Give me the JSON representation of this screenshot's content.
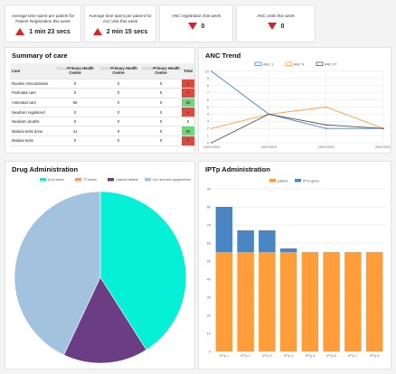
{
  "kpis": [
    {
      "title": "Average time spent per patient for Patient Registration this week",
      "value": "1 min 23 secs",
      "trend": "up"
    },
    {
      "title": "Average time spent per patient for Anc Visit this week",
      "value": "2 min 15 secs",
      "trend": "up"
    },
    {
      "title": "ANC registration this week",
      "value": "0",
      "trend": "down"
    },
    {
      "title": "ANC visits this week",
      "value": "0",
      "trend": "down"
    }
  ],
  "summary": {
    "title": "Summary of care",
    "columns": [
      "Care",
      "Primary Health Centre",
      "Primary Health Centre",
      "Primary Health Centre",
      "Total"
    ],
    "rows": [
      {
        "care": "Routine immunization",
        "a": "0",
        "b": "0",
        "c": "0",
        "total": "0",
        "status": "bad"
      },
      {
        "care": "Postnatal care",
        "a": "0",
        "b": "0",
        "c": "0",
        "total": "0",
        "status": "bad"
      },
      {
        "care": "Antenatal care",
        "a": "56",
        "b": "0",
        "c": "0",
        "total": "56",
        "status": "good"
      },
      {
        "care": "Newborn registered",
        "a": "0",
        "b": "0",
        "c": "0",
        "total": "0",
        "status": "bad"
      },
      {
        "care": "Newborn deaths",
        "a": "0",
        "b": "0",
        "c": "0",
        "total": "0",
        "status": "none"
      },
      {
        "care": "Malaria tests done",
        "a": "41",
        "b": "9",
        "c": "0",
        "total": "50",
        "status": "good"
      },
      {
        "care": "Malaria tests",
        "a": "0",
        "b": "0",
        "c": "0",
        "total": "0",
        "status": "bad"
      }
    ]
  },
  "colors": {
    "up": "#e02020",
    "down": "#e02020",
    "good": "#6fd67a",
    "bad": "#d94a3f",
    "teal": "#06f0d8",
    "purple": "#6a3d84",
    "lightblue": "#a3c2dd",
    "orange": "#ff9d3a",
    "blue": "#4a85c4",
    "grey": "#555555"
  },
  "anc_trend": {
    "title": "ANC Trend",
    "chart_data": {
      "type": "line",
      "x": [
        "04/07/2023",
        "11/07/2023",
        "18/07/2023",
        "25/07/2023"
      ],
      "ylim": [
        0,
        10
      ],
      "yticks": [
        "0",
        "1",
        "2",
        "3",
        "4",
        "5",
        "6",
        "7",
        "8",
        "9",
        "10"
      ],
      "series": [
        {
          "name": "ANC 1",
          "values": [
            10,
            4,
            2,
            2
          ],
          "color": "#4a85c4"
        },
        {
          "name": "ANC 4",
          "values": [
            2,
            4,
            5,
            2
          ],
          "color": "#ff9d3a"
        },
        {
          "name": "ANC 8T",
          "values": [
            0,
            4,
            2.5,
            2
          ],
          "color": "#555555"
        }
      ]
    }
  },
  "drug_admin": {
    "title": "Drug Administration",
    "chart_data": {
      "type": "pie",
      "labels": [
        "IpTp doses",
        "TT doses",
        "Calcium tablets",
        "Iron and folic supplements"
      ],
      "values": [
        41,
        0,
        16,
        43
      ],
      "colors": [
        "#06f0d8",
        "#ff9d3a",
        "#6a3d84",
        "#a3c2dd"
      ]
    }
  },
  "iptp_admin": {
    "title": "IPTp Administration",
    "chart_data": {
      "type": "bar",
      "categories": [
        "IPTp 1",
        "IPTp 2",
        "IPTp 3",
        "IPTp 4",
        "IPTp 5",
        "IPTp 6",
        "IPTp 7",
        "IPTp 8"
      ],
      "ylim": [
        0,
        90
      ],
      "yticks": [
        "0",
        "10",
        "20",
        "30",
        "40",
        "50",
        "60",
        "70",
        "80",
        "90"
      ],
      "series": [
        {
          "name": "patient",
          "values": [
            55,
            55,
            55,
            55,
            55,
            55,
            55,
            55
          ],
          "color": "#ff9d3a"
        },
        {
          "name": "IPTp given",
          "values": [
            25,
            12,
            12,
            2,
            0,
            0,
            0,
            0
          ],
          "color": "#4a85c4"
        }
      ]
    }
  }
}
